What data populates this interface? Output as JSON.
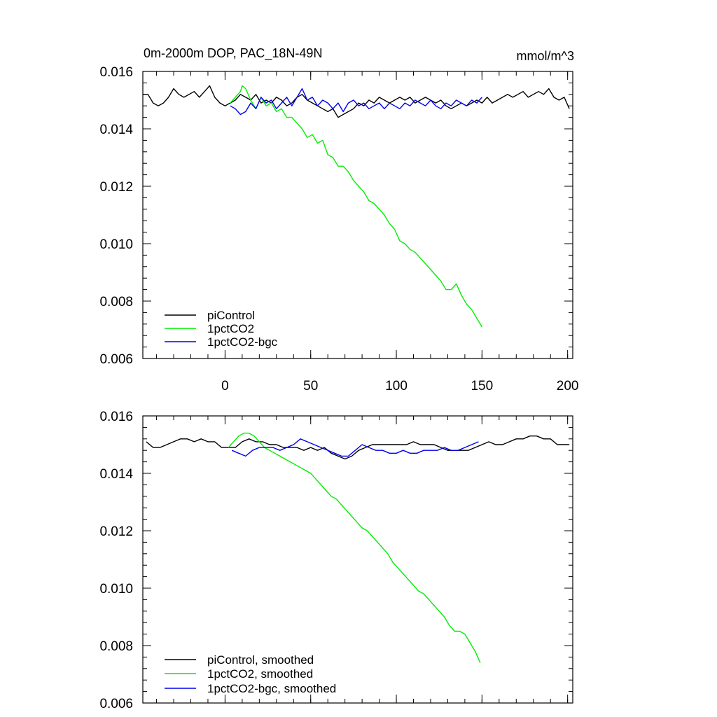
{
  "chart_data": [
    {
      "type": "line",
      "title_left": "0m-2000m DOP, PAC_18N-49N",
      "title_right": "mmol/m^3",
      "xlim": [
        -48,
        203
      ],
      "ylim": [
        0.006,
        0.016
      ],
      "yticks": [
        "0.016",
        "0.014",
        "0.012",
        "0.010",
        "0.008",
        "0.006"
      ],
      "ytick_values": [
        0.016,
        0.014,
        0.012,
        0.01,
        0.008,
        0.006
      ],
      "xticks": [
        "0",
        "50",
        "100",
        "150",
        "200"
      ],
      "xtick_values": [
        0,
        50,
        100,
        150,
        200
      ],
      "legend": [
        "piControl",
        "1pctCO2",
        "1pctCO2-bgc"
      ],
      "legend_placement": "bottom-left",
      "series": [
        {
          "name": "piControl",
          "color": "#000000",
          "x": [
            -48,
            -45,
            -42,
            -39,
            -36,
            -33,
            -30,
            -27,
            -24,
            -21,
            -18,
            -15,
            -12,
            -9,
            -6,
            -3,
            0,
            3,
            6,
            9,
            12,
            15,
            18,
            21,
            24,
            27,
            30,
            33,
            36,
            39,
            42,
            45,
            48,
            51,
            54,
            57,
            60,
            63,
            66,
            69,
            72,
            75,
            78,
            81,
            84,
            87,
            90,
            93,
            96,
            99,
            102,
            105,
            108,
            111,
            114,
            117,
            120,
            123,
            126,
            129,
            132,
            135,
            138,
            141,
            144,
            147,
            150,
            153,
            156,
            159,
            162,
            165,
            168,
            171,
            174,
            177,
            180,
            183,
            186,
            189,
            192,
            195,
            198,
            201
          ],
          "y": [
            0.0152,
            0.0152,
            0.0149,
            0.0148,
            0.0149,
            0.0151,
            0.0154,
            0.0152,
            0.0151,
            0.0152,
            0.0153,
            0.0151,
            0.0153,
            0.0155,
            0.0151,
            0.0149,
            0.0148,
            0.0149,
            0.015,
            0.0152,
            0.0151,
            0.015,
            0.0152,
            0.0149,
            0.015,
            0.0149,
            0.0151,
            0.015,
            0.0148,
            0.0149,
            0.0151,
            0.0152,
            0.015,
            0.0149,
            0.0148,
            0.0147,
            0.0146,
            0.0147,
            0.0144,
            0.0145,
            0.0146,
            0.0147,
            0.0149,
            0.0148,
            0.015,
            0.0149,
            0.0151,
            0.015,
            0.0149,
            0.015,
            0.0151,
            0.015,
            0.0151,
            0.0149,
            0.015,
            0.0151,
            0.015,
            0.0149,
            0.015,
            0.0148,
            0.0147,
            0.0148,
            0.0149,
            0.0148,
            0.0149,
            0.015,
            0.0149,
            0.0151,
            0.0149,
            0.015,
            0.0151,
            0.0152,
            0.0151,
            0.0152,
            0.0153,
            0.0151,
            0.0152,
            0.0153,
            0.0152,
            0.0154,
            0.0151,
            0.015,
            0.0151,
            0.0147
          ]
        },
        {
          "name": "1pctCO2",
          "color": "#00ee00",
          "x": [
            3,
            6,
            9,
            10,
            12,
            15,
            18,
            21,
            24,
            27,
            30,
            33,
            36,
            39,
            42,
            45,
            48,
            51,
            54,
            57,
            60,
            63,
            66,
            69,
            72,
            75,
            78,
            81,
            84,
            87,
            90,
            93,
            96,
            99,
            102,
            105,
            108,
            111,
            114,
            117,
            120,
            123,
            126,
            129,
            132,
            135,
            138,
            141,
            144,
            147,
            150
          ],
          "y": [
            0.0149,
            0.0151,
            0.0153,
            0.0155,
            0.0154,
            0.015,
            0.0147,
            0.0151,
            0.0148,
            0.0149,
            0.0146,
            0.0147,
            0.0144,
            0.0144,
            0.0142,
            0.014,
            0.0137,
            0.0138,
            0.0135,
            0.0136,
            0.0131,
            0.013,
            0.0127,
            0.0127,
            0.0125,
            0.0122,
            0.012,
            0.0118,
            0.0115,
            0.0114,
            0.0112,
            0.011,
            0.0107,
            0.0105,
            0.0101,
            0.01,
            0.0098,
            0.0097,
            0.0095,
            0.0093,
            0.0091,
            0.0089,
            0.0087,
            0.0084,
            0.0084,
            0.0086,
            0.0082,
            0.0079,
            0.0077,
            0.0074,
            0.0071
          ]
        },
        {
          "name": "1pctCO2-bgc",
          "color": "#0000ee",
          "x": [
            3,
            6,
            9,
            12,
            15,
            18,
            21,
            24,
            27,
            30,
            33,
            36,
            39,
            42,
            45,
            48,
            51,
            54,
            57,
            60,
            63,
            66,
            69,
            72,
            75,
            78,
            81,
            84,
            87,
            90,
            93,
            96,
            99,
            102,
            105,
            108,
            111,
            114,
            117,
            120,
            123,
            126,
            129,
            132,
            135,
            138,
            141,
            144,
            147,
            150
          ],
          "y": [
            0.0148,
            0.0147,
            0.0145,
            0.0146,
            0.0149,
            0.0147,
            0.0151,
            0.0149,
            0.015,
            0.0147,
            0.0149,
            0.0151,
            0.0148,
            0.0151,
            0.0154,
            0.015,
            0.0151,
            0.0148,
            0.015,
            0.0149,
            0.0147,
            0.0149,
            0.0146,
            0.0149,
            0.015,
            0.0148,
            0.0149,
            0.0147,
            0.0148,
            0.0149,
            0.0147,
            0.0149,
            0.0148,
            0.0147,
            0.0149,
            0.0148,
            0.015,
            0.0149,
            0.0148,
            0.015,
            0.0148,
            0.0147,
            0.0149,
            0.0148,
            0.015,
            0.0149,
            0.0148,
            0.015,
            0.0149,
            0.0151
          ]
        }
      ]
    },
    {
      "type": "line",
      "xlim": [
        -48,
        203
      ],
      "ylim": [
        0.006,
        0.016
      ],
      "yticks": [
        "0.016",
        "0.014",
        "0.012",
        "0.010",
        "0.008",
        "0.006"
      ],
      "ytick_values": [
        0.016,
        0.014,
        0.012,
        0.01,
        0.008,
        0.006
      ],
      "xtick_values": [
        0,
        50,
        100,
        150,
        200
      ],
      "legend": [
        "piControl, smoothed",
        "1pctCO2, smoothed",
        "1pctCO2-bgc, smoothed"
      ],
      "legend_placement": "bottom-left",
      "series": [
        {
          "name": "piControl, smoothed",
          "color": "#000000",
          "x": [
            -46,
            -42,
            -38,
            -34,
            -30,
            -26,
            -22,
            -18,
            -14,
            -10,
            -6,
            -2,
            2,
            6,
            10,
            14,
            18,
            22,
            26,
            30,
            34,
            38,
            42,
            46,
            50,
            54,
            58,
            62,
            66,
            70,
            74,
            78,
            82,
            86,
            90,
            94,
            98,
            102,
            106,
            110,
            114,
            118,
            122,
            126,
            130,
            134,
            138,
            142,
            146,
            150,
            154,
            158,
            162,
            166,
            170,
            174,
            178,
            182,
            186,
            190,
            194,
            198,
            201
          ],
          "y": [
            0.0151,
            0.0149,
            0.0149,
            0.015,
            0.0151,
            0.0152,
            0.0152,
            0.0151,
            0.0152,
            0.0151,
            0.0151,
            0.0149,
            0.0149,
            0.0149,
            0.0151,
            0.0152,
            0.0151,
            0.0151,
            0.015,
            0.015,
            0.0149,
            0.0149,
            0.0149,
            0.0148,
            0.0149,
            0.0148,
            0.0149,
            0.0147,
            0.0146,
            0.0145,
            0.0146,
            0.0148,
            0.0149,
            0.015,
            0.015,
            0.015,
            0.015,
            0.015,
            0.015,
            0.0151,
            0.015,
            0.015,
            0.015,
            0.0149,
            0.0148,
            0.0148,
            0.0148,
            0.0148,
            0.0149,
            0.015,
            0.0151,
            0.015,
            0.015,
            0.0151,
            0.0152,
            0.0152,
            0.0153,
            0.0153,
            0.0152,
            0.0152,
            0.015,
            0.015,
            0.015
          ]
        },
        {
          "name": "1pctCO2, smoothed",
          "color": "#00ee00",
          "x": [
            2,
            5,
            8,
            11,
            14,
            17,
            20,
            23,
            26,
            29,
            32,
            35,
            38,
            41,
            44,
            47,
            50,
            53,
            56,
            59,
            62,
            65,
            68,
            71,
            74,
            77,
            80,
            83,
            86,
            89,
            92,
            95,
            98,
            101,
            104,
            107,
            110,
            113,
            116,
            119,
            122,
            125,
            128,
            131,
            134,
            137,
            140,
            143,
            146,
            149
          ],
          "y": [
            0.0149,
            0.0151,
            0.0153,
            0.0154,
            0.0154,
            0.0153,
            0.0151,
            0.0149,
            0.0148,
            0.0147,
            0.0146,
            0.0145,
            0.0144,
            0.0143,
            0.0142,
            0.0141,
            0.014,
            0.0138,
            0.0136,
            0.0134,
            0.0132,
            0.0131,
            0.0129,
            0.0127,
            0.0125,
            0.0123,
            0.0121,
            0.012,
            0.0118,
            0.0116,
            0.0114,
            0.0112,
            0.0109,
            0.0107,
            0.0105,
            0.0103,
            0.0101,
            0.0099,
            0.0098,
            0.0096,
            0.0094,
            0.0092,
            0.009,
            0.0087,
            0.0085,
            0.0085,
            0.0084,
            0.0081,
            0.0078,
            0.0074
          ]
        },
        {
          "name": "1pctCO2-bgc, smoothed",
          "color": "#0000ee",
          "x": [
            4,
            8,
            12,
            16,
            20,
            24,
            28,
            32,
            36,
            40,
            44,
            48,
            52,
            56,
            60,
            64,
            68,
            72,
            76,
            80,
            84,
            88,
            92,
            96,
            100,
            104,
            108,
            112,
            116,
            120,
            124,
            128,
            132,
            136,
            140,
            144,
            148
          ],
          "y": [
            0.0148,
            0.0147,
            0.0146,
            0.0148,
            0.0149,
            0.0149,
            0.0149,
            0.0148,
            0.0149,
            0.015,
            0.0152,
            0.0151,
            0.015,
            0.0149,
            0.0148,
            0.0147,
            0.0146,
            0.0146,
            0.0148,
            0.015,
            0.0149,
            0.0148,
            0.0148,
            0.0147,
            0.0147,
            0.0148,
            0.0147,
            0.0147,
            0.0148,
            0.0148,
            0.0148,
            0.0149,
            0.0148,
            0.0148,
            0.0149,
            0.015,
            0.0151
          ]
        }
      ]
    }
  ]
}
